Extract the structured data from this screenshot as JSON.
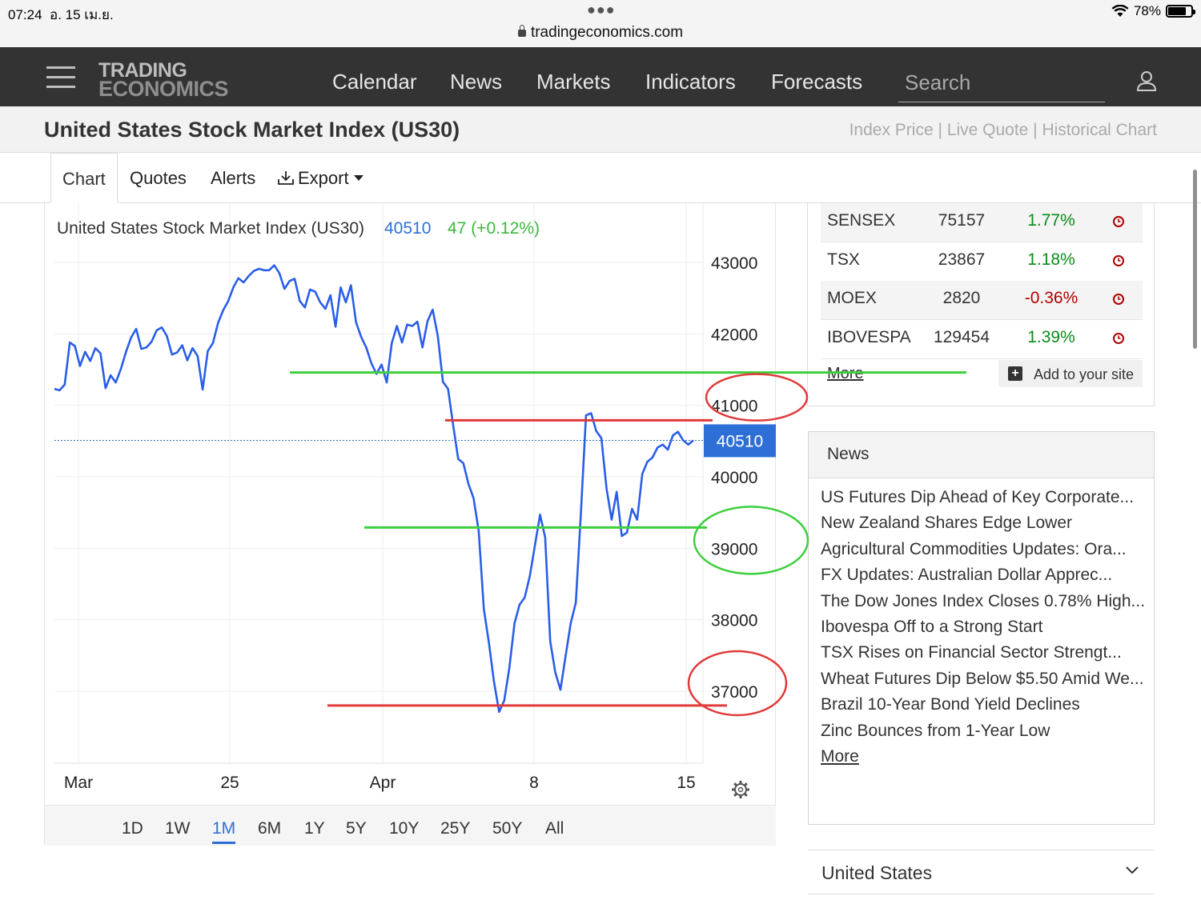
{
  "status": {
    "time": "07:24",
    "date": "อ. 15 เม.ย.",
    "battery": "78%",
    "battery_level": 0.78,
    "url": "tradingeconomics.com"
  },
  "nav": {
    "logo_line1": "TRADING",
    "logo_line2": "ECONOMICS",
    "items": [
      "Calendar",
      "News",
      "Markets",
      "Indicators",
      "Forecasts"
    ],
    "search_placeholder": "Search"
  },
  "page": {
    "title": "United States Stock Market Index (US30)",
    "sub_links": "Index Price | Live Quote | Historical Chart"
  },
  "tabs": {
    "chart": "Chart",
    "quotes": "Quotes",
    "alerts": "Alerts",
    "export": "Export"
  },
  "chart_header": {
    "name": "United States Stock Market Index (US30)",
    "price": "40510",
    "change": "47 (+0.12%)"
  },
  "chart_data": {
    "type": "line",
    "series": [
      {
        "values": [
          41230,
          41210,
          41290,
          41880,
          41830,
          41550,
          41750,
          41620,
          41800,
          41730,
          41240,
          41420,
          41320,
          41510,
          41750,
          41950,
          42070,
          41790,
          41810,
          41890,
          42050,
          42090,
          41970,
          41710,
          41740,
          41840,
          41630,
          41800,
          41690,
          41220,
          41760,
          41870,
          42150,
          42330,
          42460,
          42650,
          42780,
          42720,
          42810,
          42880,
          42910,
          42890,
          42890,
          42960,
          42850,
          42630,
          42740,
          42770,
          42460,
          42370,
          42620,
          42590,
          42440,
          42350,
          42540,
          42100,
          42650,
          42440,
          42680,
          42160,
          41960,
          41810,
          41590,
          41440,
          41570,
          41320,
          41870,
          42110,
          41880,
          42130,
          42110,
          42170,
          41810,
          42180,
          42340,
          41970,
          41330,
          41230,
          40720,
          40250,
          40190,
          39900,
          39700,
          39240,
          38150,
          37680,
          37130,
          36710,
          36870,
          37330,
          37950,
          38210,
          38310,
          38610,
          39040,
          39470,
          39150,
          37700,
          37260,
          37020,
          37490,
          37950,
          38240,
          39510,
          40860,
          40890,
          40640,
          40540,
          39840,
          39400,
          39790,
          39170,
          39220,
          39550,
          39400,
          40040,
          40210,
          40270,
          40410,
          40450,
          40380,
          40580,
          40630,
          40510,
          40450,
          40510
        ]
      }
    ],
    "x_tick_labels": [
      "Mar",
      "25",
      "Apr",
      "8",
      "15"
    ],
    "y_tick_labels": [
      "43000",
      "42000",
      "41000",
      "40000",
      "39000",
      "38000",
      "37000"
    ],
    "ylim": [
      36000,
      43800
    ],
    "last_price": 40510,
    "line_color": "#2a5ee8",
    "annotations": {
      "green_lines": [
        41460,
        39290
      ],
      "red_lines": [
        40790,
        36800
      ],
      "red_circles": [
        "41000",
        "37000"
      ],
      "green_circles": [
        "39000"
      ]
    }
  },
  "ranges": [
    "1D",
    "1W",
    "1M",
    "6M",
    "1Y",
    "5Y",
    "10Y",
    "25Y",
    "50Y",
    "All"
  ],
  "active_range": "1M",
  "indices": [
    {
      "name": "SENSEX",
      "value": "75157",
      "change": "1.77%",
      "dir": "up"
    },
    {
      "name": "TSX",
      "value": "23867",
      "change": "1.18%",
      "dir": "up"
    },
    {
      "name": "MOEX",
      "value": "2820",
      "change": "-0.36%",
      "dir": "down"
    },
    {
      "name": "IBOVESPA",
      "value": "129454",
      "change": "1.39%",
      "dir": "up"
    }
  ],
  "indices_more": "More",
  "add_to_site": "Add to your site",
  "news": {
    "title": "News",
    "items": [
      "US Futures Dip Ahead of Key Corporate...",
      "New Zealand Shares Edge Lower",
      "Agricultural Commodities Updates: Ora...",
      "FX Updates: Australian Dollar Apprec...",
      "The Dow Jones Index Closes 0.78% High...",
      "Ibovespa Off to a Strong Start",
      "TSX Rises on Financial Sector Strengt...",
      "Wheat Futures Dip Below $5.50 Amid We...",
      "Brazil 10-Year Bond Yield Declines",
      "Zinc Bounces from 1-Year Low"
    ],
    "more": "More"
  },
  "country": "United States"
}
